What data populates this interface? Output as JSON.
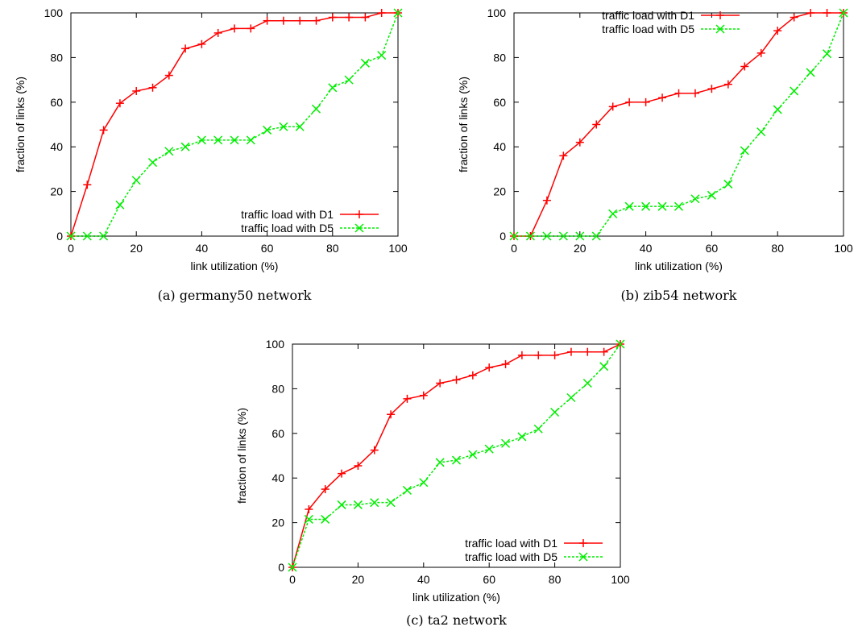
{
  "colors": {
    "d1": "#ff0000",
    "d5": "#00ee00",
    "axis": "#000000"
  },
  "chart_data": [
    {
      "type": "line",
      "caption": "(a) germany50 network",
      "xlabel": "link utilization (%)",
      "ylabel": "fraction of links (%)",
      "xlim": [
        0,
        100
      ],
      "ylim": [
        0,
        100
      ],
      "xticks": [
        0,
        20,
        40,
        60,
        80,
        100
      ],
      "yticks": [
        0,
        20,
        40,
        60,
        80,
        100
      ],
      "legend_position": "bottom-right",
      "series": [
        {
          "name": "traffic load with D1",
          "marker": "plus",
          "x": [
            0,
            5,
            10,
            15,
            20,
            25,
            30,
            35,
            40,
            45,
            50,
            55,
            60,
            65,
            70,
            75,
            80,
            85,
            90,
            95,
            100
          ],
          "values": [
            0,
            23,
            47.5,
            59.5,
            65,
            66.5,
            72,
            84,
            86,
            91,
            93,
            93,
            96.5,
            96.5,
            96.5,
            96.5,
            98,
            98,
            98,
            100,
            100
          ]
        },
        {
          "name": "traffic load with D5",
          "marker": "cross",
          "x": [
            0,
            5,
            10,
            15,
            20,
            25,
            30,
            35,
            40,
            45,
            50,
            55,
            60,
            65,
            70,
            75,
            80,
            85,
            90,
            95,
            100
          ],
          "values": [
            0,
            0,
            0,
            14,
            25,
            33,
            38,
            40,
            43,
            43,
            43,
            43,
            47.5,
            49,
            49,
            57,
            66.5,
            70,
            77.5,
            81,
            100
          ]
        }
      ]
    },
    {
      "type": "line",
      "caption": "(b) zib54 network",
      "xlabel": "link utilization (%)",
      "ylabel": "fraction of links (%)",
      "xlim": [
        0,
        100
      ],
      "ylim": [
        0,
        100
      ],
      "xticks": [
        0,
        20,
        40,
        60,
        80,
        100
      ],
      "yticks": [
        0,
        20,
        40,
        60,
        80,
        100
      ],
      "legend_position": "top-left",
      "series": [
        {
          "name": "traffic load with D1",
          "marker": "plus",
          "x": [
            0,
            5,
            10,
            15,
            20,
            25,
            30,
            35,
            40,
            45,
            50,
            55,
            60,
            65,
            70,
            75,
            80,
            85,
            90,
            95,
            100
          ],
          "values": [
            0,
            0,
            16,
            36,
            42,
            50,
            58,
            60,
            60,
            62,
            64,
            64,
            66,
            68,
            76,
            82,
            92,
            98,
            100,
            100,
            100
          ]
        },
        {
          "name": "traffic load with D5",
          "marker": "cross",
          "x": [
            0,
            5,
            10,
            15,
            20,
            25,
            30,
            35,
            40,
            45,
            50,
            55,
            60,
            65,
            70,
            75,
            80,
            85,
            90,
            95,
            100
          ],
          "values": [
            0,
            0,
            0,
            0,
            0,
            0,
            10,
            13.3,
            13.3,
            13.3,
            13.3,
            16.7,
            18.3,
            23.3,
            38.3,
            46.7,
            56.7,
            65,
            73.3,
            81.7,
            100
          ]
        }
      ]
    },
    {
      "type": "line",
      "caption": "(c) ta2 network",
      "xlabel": "link utilization (%)",
      "ylabel": "fraction of links (%)",
      "xlim": [
        0,
        100
      ],
      "ylim": [
        0,
        100
      ],
      "xticks": [
        0,
        20,
        40,
        60,
        80,
        100
      ],
      "yticks": [
        0,
        20,
        40,
        60,
        80,
        100
      ],
      "legend_position": "bottom-right",
      "series": [
        {
          "name": "traffic load with D1",
          "marker": "plus",
          "x": [
            0,
            5,
            10,
            15,
            20,
            25,
            30,
            35,
            40,
            45,
            50,
            55,
            60,
            65,
            70,
            75,
            80,
            85,
            90,
            95,
            100
          ],
          "values": [
            0,
            26,
            35,
            42,
            45.5,
            52.5,
            68.5,
            75.5,
            77,
            82.5,
            84,
            86,
            89.5,
            91,
            95,
            95,
            95,
            96.5,
            96.5,
            96.5,
            100
          ]
        },
        {
          "name": "traffic load with D5",
          "marker": "cross",
          "x": [
            0,
            5,
            10,
            15,
            20,
            25,
            30,
            35,
            40,
            45,
            50,
            55,
            60,
            65,
            70,
            75,
            80,
            85,
            90,
            95,
            100
          ],
          "values": [
            0,
            21.5,
            21.5,
            28,
            28,
            29,
            29,
            34.5,
            38,
            47,
            48,
            50.5,
            53,
            55.5,
            58.5,
            62,
            69.5,
            76,
            82.5,
            90,
            100
          ]
        }
      ]
    }
  ]
}
